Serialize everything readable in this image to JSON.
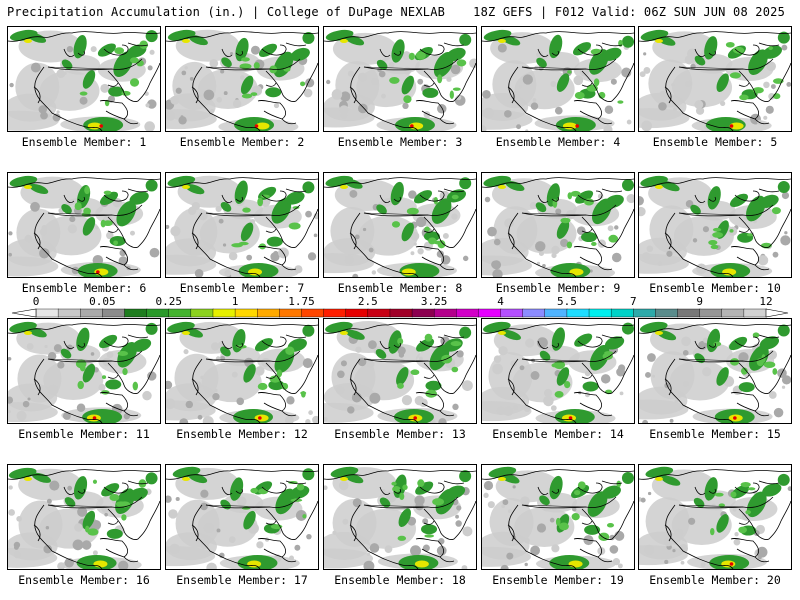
{
  "header": {
    "left": "Precipitation Accumulation (in.) | College of DuPage NEXLAB",
    "right": "18Z GEFS | F012 Valid: 06Z SUN JUN 08 2025"
  },
  "panel_label_prefix": "Ensemble Member: ",
  "members": [
    "1",
    "2",
    "3",
    "4",
    "5",
    "6",
    "7",
    "8",
    "9",
    "10",
    "11",
    "12",
    "13",
    "14",
    "15",
    "16",
    "17",
    "18",
    "19",
    "20"
  ],
  "colorbar": {
    "tick_labels": [
      "0",
      "0.05",
      "0.25",
      "1",
      "1.75",
      "2.5",
      "3.25",
      "4",
      "5.5",
      "7",
      "9",
      "12"
    ],
    "colors": [
      "#e6e6e6",
      "#c8c8c8",
      "#aaaaaa",
      "#8c8c8c",
      "#1e7d1e",
      "#2a9a2a",
      "#44b32e",
      "#8cd21e",
      "#e6f000",
      "#ffd700",
      "#ffaa00",
      "#ff7800",
      "#ff4600",
      "#ff1e00",
      "#e60000",
      "#c80014",
      "#a00028",
      "#8c0050",
      "#b4008c",
      "#d200c8",
      "#e600ff",
      "#b450ff",
      "#8c8cff",
      "#50b4ff",
      "#1edcff",
      "#00f0f0",
      "#00d2c8",
      "#2daaaa",
      "#5a8c8c",
      "#787878",
      "#969696",
      "#b4b4b4",
      "#d2d2d2"
    ]
  },
  "colors": {
    "background": "#ffffff",
    "light_precip": "#cdcdcd",
    "medium_precip": "#a9a9a9",
    "green_precip": "#2f9a2f",
    "light_green": "#59c24a",
    "yellow_precip": "#e6e600",
    "red_precip": "#e60000",
    "coastline": "#000000"
  }
}
